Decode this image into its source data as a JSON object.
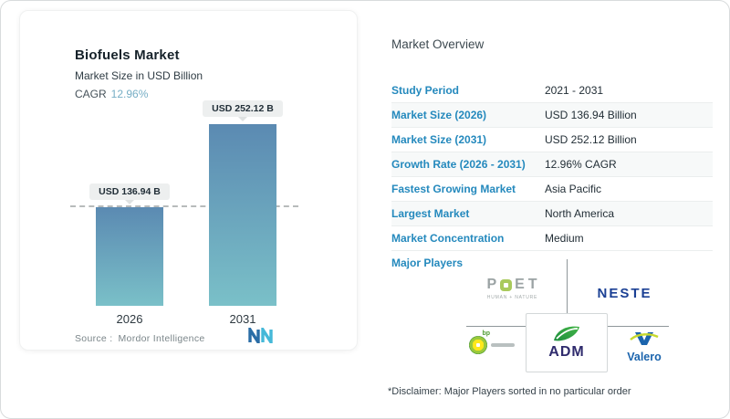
{
  "left_card": {
    "title": "Biofuels Market",
    "subtitle": "Market Size in USD Billion",
    "cagr_label": "CAGR",
    "cagr_value": "12.96%",
    "source_label": "Source :",
    "source_value": "Mordor Intelligence",
    "logo_icon": "mordor-intelligence-logo"
  },
  "chart_data": {
    "type": "bar",
    "title": "Biofuels Market",
    "subtitle": "Market Size in USD Billion",
    "unit": "USD Billion",
    "categories": [
      "2026",
      "2031"
    ],
    "values": [
      136.94,
      252.12
    ],
    "bar_labels": [
      "USD 136.94 B",
      "USD 252.12 B"
    ],
    "cagr_percent": "12.96%",
    "reference_line_value": 136.94,
    "ylim": [
      0,
      260
    ],
    "grid": false,
    "legend": "none",
    "bar_color_top": "#5b8ab2",
    "bar_color_bottom": "#7ac0c8"
  },
  "overview": {
    "title": "Market Overview",
    "rows": [
      {
        "label": "Study Period",
        "value": "2021 - 2031"
      },
      {
        "label": "Market Size (2026)",
        "value": "USD 136.94 Billion"
      },
      {
        "label": "Market Size (2031)",
        "value": "USD 252.12 Billion"
      },
      {
        "label": "Growth Rate (2026 - 2031)",
        "value": "12.96% CAGR"
      },
      {
        "label": "Fastest Growing Market",
        "value": "Asia Pacific"
      },
      {
        "label": "Largest Market",
        "value": "North America"
      },
      {
        "label": "Market Concentration",
        "value": "Medium"
      }
    ],
    "major_players": {
      "label": "Major Players",
      "poet": {
        "letters": [
          "P",
          "E",
          "T"
        ],
        "tagline": "HUMAN + NATURE",
        "icon": "poet-logo"
      },
      "neste": {
        "name": "NESTE",
        "icon": "neste-logo"
      },
      "bp": {
        "name": "bp",
        "icon": "bp-helios-icon"
      },
      "adm": {
        "name": "ADM",
        "icon": "adm-leaf-icon"
      },
      "valero": {
        "name": "Valero",
        "icon": "valero-v-icon"
      },
      "disclaimer": "*Disclaimer: Major Players sorted in no particular order"
    }
  }
}
